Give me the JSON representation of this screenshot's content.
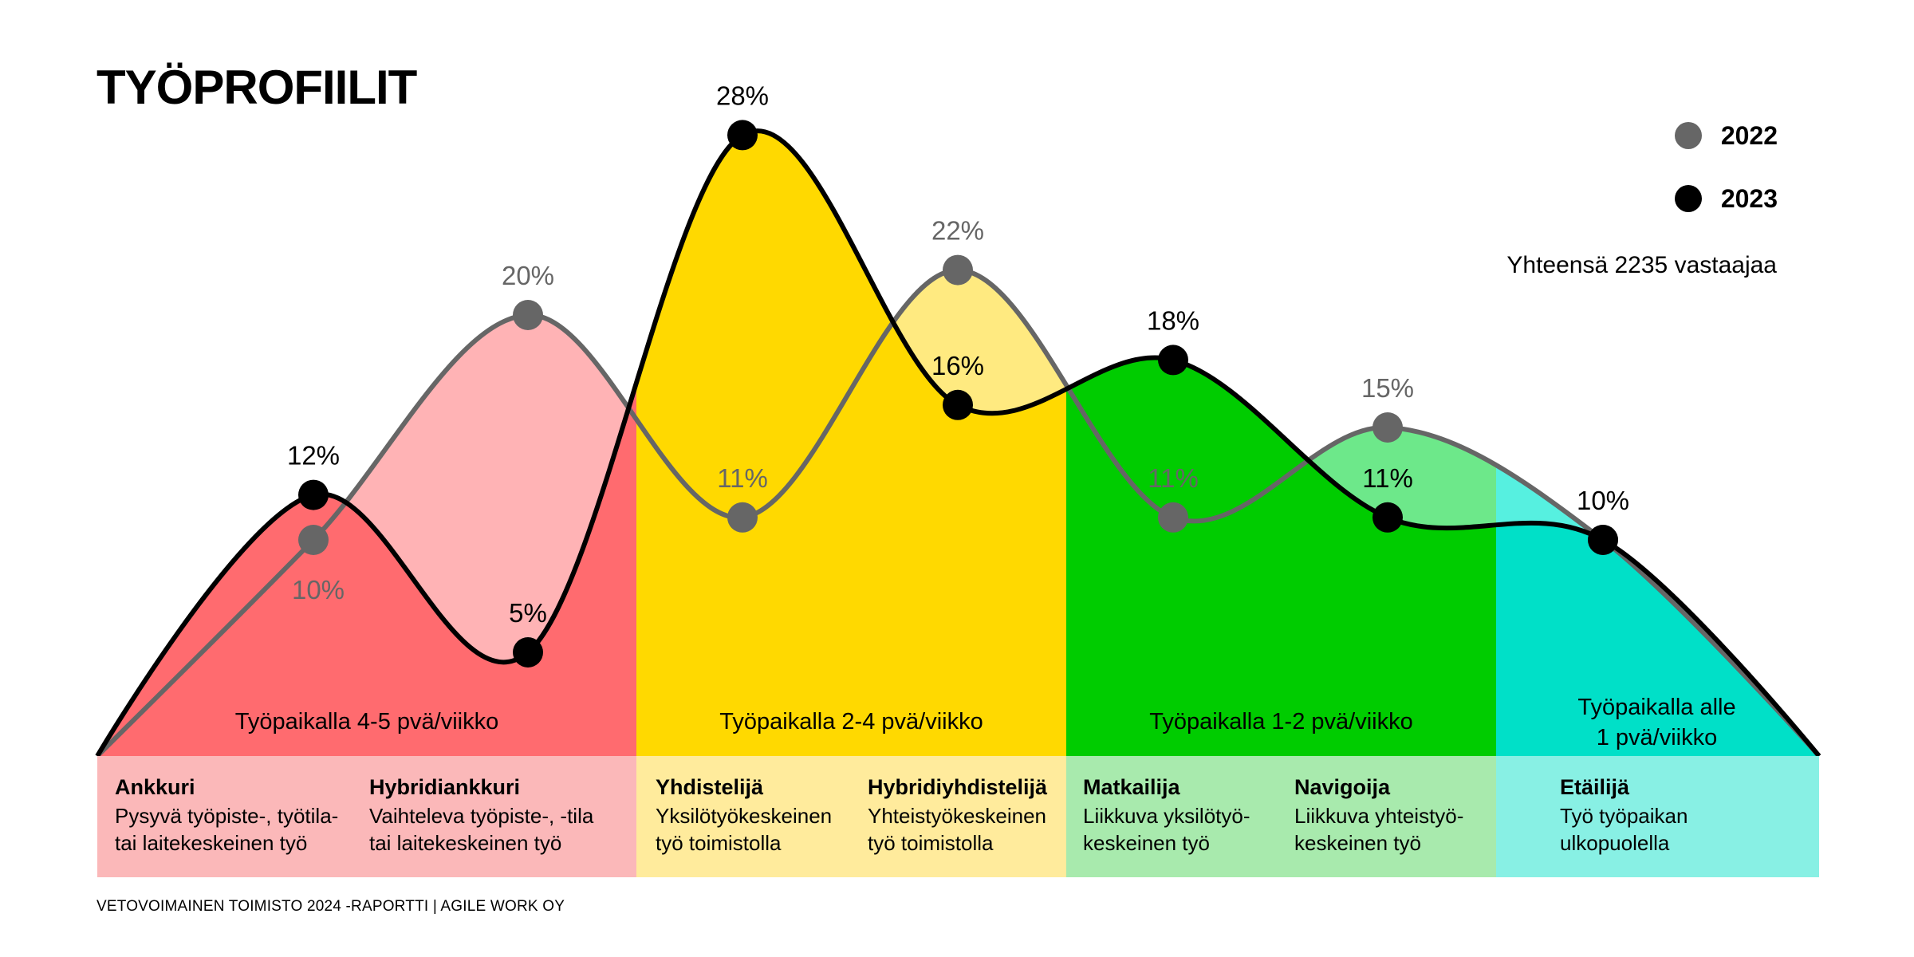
{
  "title": "TYÖPROFIILIT",
  "footer": "VETOVOIMAINEN TOIMISTO 2024 -RAPORTTI  | AGILE WORK OY",
  "total_text": "Yhteensä 2235 vastaajaa",
  "legend": [
    {
      "label": "2022",
      "color": "#666666"
    },
    {
      "label": "2023",
      "color": "#000000"
    }
  ],
  "categories": [
    {
      "label": "Työpaikalla 4-5 pvä/viikko",
      "fill": "#ff6b6f",
      "light_fill": "#ffb3b5",
      "box_fill": "#fbb8b9",
      "profiles": [
        {
          "name": "Ankkuri",
          "desc": "Pysyvä työpiste-, työtila-\ntai laitekeskeinen työ"
        },
        {
          "name": "Hybridiankkuri",
          "desc": "Vaihteleva työpiste-, -tila\ntai laitekeskeinen työ"
        }
      ]
    },
    {
      "label": "Työpaikalla 2-4 pvä/viikko",
      "fill": "#ffd900",
      "light_fill": "#ffea80",
      "box_fill": "#ffeb9c",
      "profiles": [
        {
          "name": "Yhdistelijä",
          "desc": "Yksilötyökeskeinen\ntyö toimistolla"
        },
        {
          "name": "Hybridiyhdistelijä",
          "desc": "Yhteistyökeskeinen\ntyö toimistolla"
        }
      ]
    },
    {
      "label": "Työpaikalla 1-2 pvä/viikko",
      "fill": "#00cc00",
      "light_fill": "#6de88a",
      "box_fill": "#a8eaad",
      "profiles": [
        {
          "name": "Matkailija",
          "desc": "Liikkuva yksilötyö-\nkeskeinen työ"
        },
        {
          "name": "Navigoija",
          "desc": "Liikkuva yhteistyö-\nkeskeinen työ"
        }
      ]
    },
    {
      "label": "Työpaikalla alle\n1 pvä/viikko",
      "fill": "#00e0c8",
      "light_fill": "#56f0e0",
      "box_fill": "#88f0e4",
      "profiles": [
        {
          "name": "Etäilijä",
          "desc": "Työ työpaikan\nulkopuolella"
        }
      ]
    }
  ],
  "chart_data": {
    "type": "line",
    "title": "TYÖPROFIILIT",
    "categories": [
      "Ankkuri",
      "Hybridiankkuri",
      "Yhdistelijä",
      "Hybridiyhdistelijä",
      "Matkailija",
      "Navigoija",
      "Etäilijä"
    ],
    "series": [
      {
        "name": "2022",
        "color": "#666666",
        "values": [
          10,
          20,
          11,
          22,
          11,
          15,
          10
        ],
        "labels": [
          "10%",
          "20%",
          "11%",
          "22%",
          "11%",
          "15%",
          "10%"
        ]
      },
      {
        "name": "2023",
        "color": "#000000",
        "values": [
          12,
          5,
          28,
          16,
          18,
          11,
          10
        ],
        "labels": [
          "12%",
          "5%",
          "28%",
          "16%",
          "18%",
          "11%",
          "10%"
        ]
      }
    ],
    "ylim": [
      0,
      30
    ],
    "smooth": true,
    "grid": false,
    "legend_position": "top-right"
  }
}
